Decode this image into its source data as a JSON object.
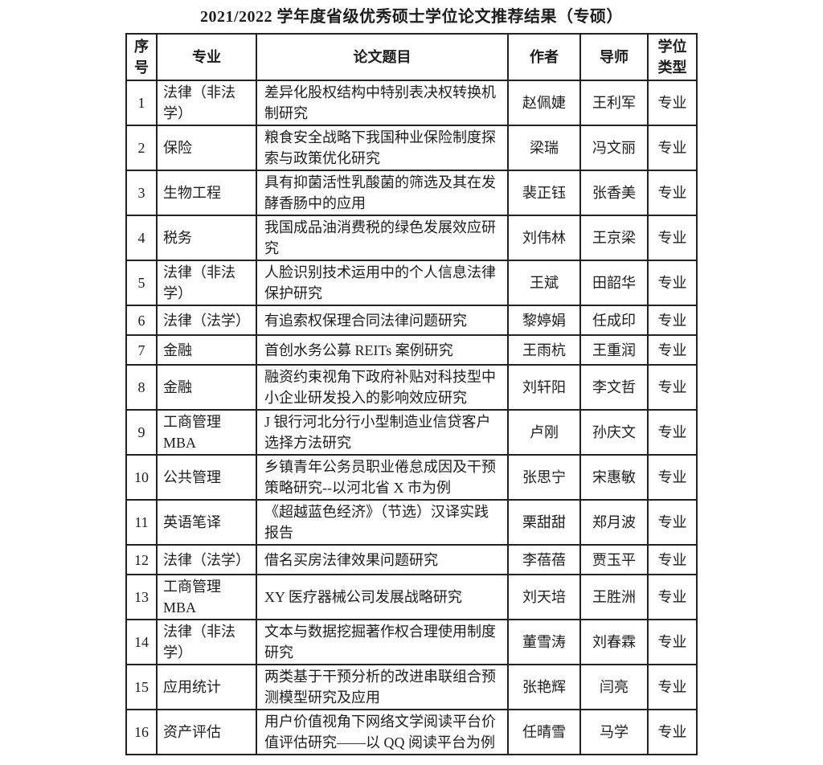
{
  "page": {
    "title": "2021/2022 学年度省级优秀硕士学位论文推荐结果（专硕）"
  },
  "table": {
    "headers": {
      "no": "序号",
      "major": "专业",
      "title": "论文题目",
      "author": "作者",
      "advisor": "导师",
      "degree": "学位类型"
    },
    "rows": [
      {
        "no": "1",
        "major": "法律（非法学）",
        "title": "差异化股权结构中特别表决权转换机制研究",
        "author": "赵佩婕",
        "advisor": "王利军",
        "degree": "专业"
      },
      {
        "no": "2",
        "major": "保险",
        "title": "粮食安全战略下我国种业保险制度探索与政策优化研究",
        "author": "梁瑞",
        "advisor": "冯文丽",
        "degree": "专业"
      },
      {
        "no": "3",
        "major": "生物工程",
        "title": "具有抑菌活性乳酸菌的筛选及其在发酵香肠中的应用",
        "author": "裴正钰",
        "advisor": "张香美",
        "degree": "专业"
      },
      {
        "no": "4",
        "major": "税务",
        "title": "我国成品油消费税的绿色发展效应研究",
        "author": "刘伟林",
        "advisor": "王京梁",
        "degree": "专业"
      },
      {
        "no": "5",
        "major": "法律（非法学）",
        "title": "人脸识别技术运用中的个人信息法律保护研究",
        "author": "王斌",
        "advisor": "田韶华",
        "degree": "专业"
      },
      {
        "no": "6",
        "major": "法律（法学）",
        "title": "有追索权保理合同法律问题研究",
        "author": "黎婷娟",
        "advisor": "任成印",
        "degree": "专业"
      },
      {
        "no": "7",
        "major": "金融",
        "title": "首创水务公募 REITs 案例研究",
        "author": "王雨杭",
        "advisor": "王重润",
        "degree": "专业"
      },
      {
        "no": "8",
        "major": "金融",
        "title": "融资约束视角下政府补贴对科技型中小企业研发投入的影响效应研究",
        "author": "刘轩阳",
        "advisor": "李文哲",
        "degree": "专业"
      },
      {
        "no": "9",
        "major": "工商管理 MBA",
        "title": "J 银行河北分行小型制造业信贷客户选择方法研究",
        "author": "卢刚",
        "advisor": "孙庆文",
        "degree": "专业"
      },
      {
        "no": "10",
        "major": "公共管理",
        "title": "乡镇青年公务员职业倦怠成因及干预策略研究--以河北省 X 市为例",
        "author": "张思宁",
        "advisor": "宋惠敏",
        "degree": "专业"
      },
      {
        "no": "11",
        "major": "英语笔译",
        "title": "《超越蓝色经济》（节选）汉译实践报告",
        "author": "栗甜甜",
        "advisor": "郑月波",
        "degree": "专业"
      },
      {
        "no": "12",
        "major": "法律（法学）",
        "title": "借名买房法律效果问题研究",
        "author": "李蓓蓓",
        "advisor": "贾玉平",
        "degree": "专业"
      },
      {
        "no": "13",
        "major": "工商管理 MBA",
        "title": "XY 医疗器械公司发展战略研究",
        "author": "刘天培",
        "advisor": "王胜洲",
        "degree": "专业"
      },
      {
        "no": "14",
        "major": "法律（非法学）",
        "title": "文本与数据挖掘著作权合理使用制度研究",
        "author": "董雪涛",
        "advisor": "刘春霖",
        "degree": "专业"
      },
      {
        "no": "15",
        "major": "应用统计",
        "title": "两类基于干预分析的改进串联组合预测模型研究及应用",
        "author": "张艳辉",
        "advisor": "闫亮",
        "degree": "专业"
      },
      {
        "no": "16",
        "major": "资产评估",
        "title": "用户价值视角下网络文学阅读平台价值评估研究——以 QQ 阅读平台为例",
        "author": "任晴雪",
        "advisor": "马学",
        "degree": "专业"
      }
    ]
  }
}
